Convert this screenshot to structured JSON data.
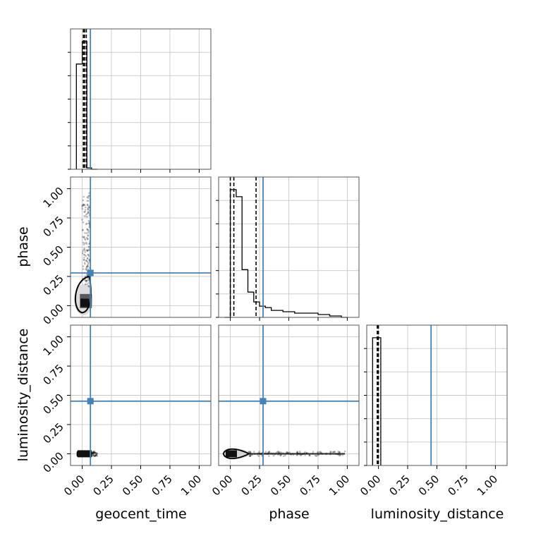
{
  "chart_data": {
    "type": "corner",
    "parameters": [
      "geocent_time",
      "phase",
      "luminosity_distance"
    ],
    "tick_labels": [
      "0.00",
      "0.25",
      "0.50",
      "0.75",
      "1.00"
    ],
    "range": [
      -0.1,
      1.1
    ],
    "grid": true,
    "truth_color": "#4682b4",
    "hist_color": "#000000",
    "truths": {
      "geocent_time": 0.07,
      "phase": 0.28,
      "luminosity_distance": 0.45
    },
    "quantiles": {
      "geocent_time": [
        0.01,
        0.02,
        0.035
      ],
      "phase": [
        0.0,
        0.03,
        0.22
      ],
      "luminosity_distance": [
        -0.01,
        -0.005,
        0.0
      ]
    },
    "marginals": {
      "geocent_time": {
        "edges": [
          -0.05,
          0.0,
          0.04,
          0.08,
          0.13
        ],
        "heights": [
          0.75,
          0.91,
          0.01,
          0.0
        ]
      },
      "phase": {
        "edges": [
          -0.05,
          0.0,
          0.05,
          0.1,
          0.15,
          0.2,
          0.25,
          0.3,
          0.35,
          0.4,
          0.45,
          0.5,
          0.55,
          0.6,
          0.65,
          0.7,
          0.75,
          0.8,
          0.85,
          0.9,
          0.95,
          1.0
        ],
        "heights": [
          0.0,
          0.91,
          0.86,
          0.34,
          0.18,
          0.11,
          0.08,
          0.07,
          0.05,
          0.05,
          0.04,
          0.04,
          0.03,
          0.03,
          0.03,
          0.03,
          0.02,
          0.02,
          0.01,
          0.01,
          0.0
        ]
      },
      "luminosity_distance": {
        "edges": [
          -0.05,
          0.0,
          0.02
        ],
        "heights": [
          0.91,
          0.91
        ]
      }
    },
    "panels": [
      {
        "x": "geocent_time",
        "y": "phase",
        "sample_range_x": [
          0.0,
          0.07
        ],
        "sample_range_y": [
          0.0,
          0.98
        ]
      },
      {
        "x": "geocent_time",
        "y": "luminosity_distance",
        "sample_range_x": [
          -0.04,
          0.13
        ],
        "sample_range_y": [
          -0.02,
          0.02
        ]
      },
      {
        "x": "phase",
        "y": "luminosity_distance",
        "sample_range_x": [
          -0.05,
          0.98
        ],
        "sample_range_y": [
          -0.02,
          0.02
        ]
      }
    ]
  }
}
